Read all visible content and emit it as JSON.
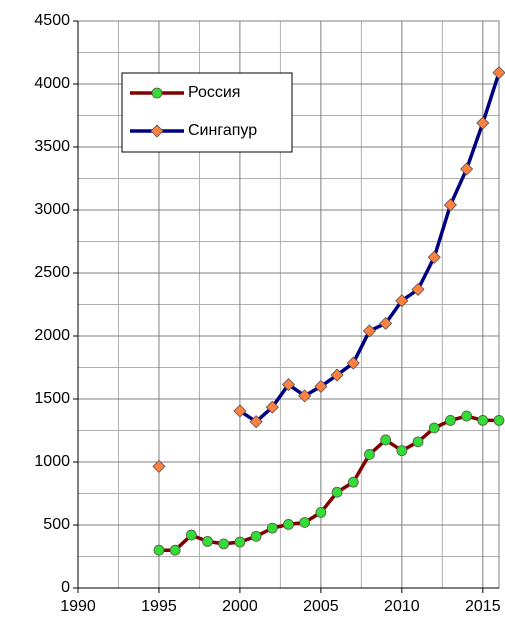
{
  "chart_data": {
    "type": "line",
    "x": [
      1995,
      1996,
      1997,
      1998,
      1999,
      2000,
      2001,
      2002,
      2003,
      2004,
      2005,
      2006,
      2007,
      2008,
      2009,
      2010,
      2011,
      2012,
      2013,
      2014,
      2015,
      2016
    ],
    "series": [
      {
        "name": "Россия",
        "color": "#800000",
        "marker_color": "#33dd33",
        "marker": "circle",
        "values": [
          300,
          300,
          420,
          370,
          350,
          365,
          410,
          475,
          505,
          520,
          600,
          760,
          840,
          1060,
          1175,
          1090,
          1160,
          1270,
          1330,
          1365,
          1330,
          1330
        ]
      },
      {
        "name": "Сингапур",
        "color": "#000080",
        "marker_color": "#ff8040",
        "marker": "diamond",
        "values": [
          965,
          null,
          null,
          null,
          null,
          1405,
          1320,
          1435,
          1615,
          1525,
          1600,
          1690,
          1785,
          2040,
          2100,
          2280,
          2370,
          2625,
          3040,
          3325,
          3690,
          4090
        ]
      }
    ],
    "xlim": [
      1990,
      2016
    ],
    "xticks": [
      1990,
      1995,
      2000,
      2005,
      2010,
      2015
    ],
    "minor_xticks": [
      1992.5,
      1997.5,
      2002.5,
      2007.5,
      2012.5
    ],
    "ylim": [
      0,
      4500
    ],
    "yticks": [
      0,
      500,
      1000,
      1500,
      2000,
      2500,
      3000,
      3500,
      4000,
      4500
    ],
    "minor_yticks": [
      250,
      750,
      1250,
      1750,
      2250,
      2750,
      3250,
      3750,
      4250
    ],
    "grid": true,
    "legend": "upper left"
  }
}
